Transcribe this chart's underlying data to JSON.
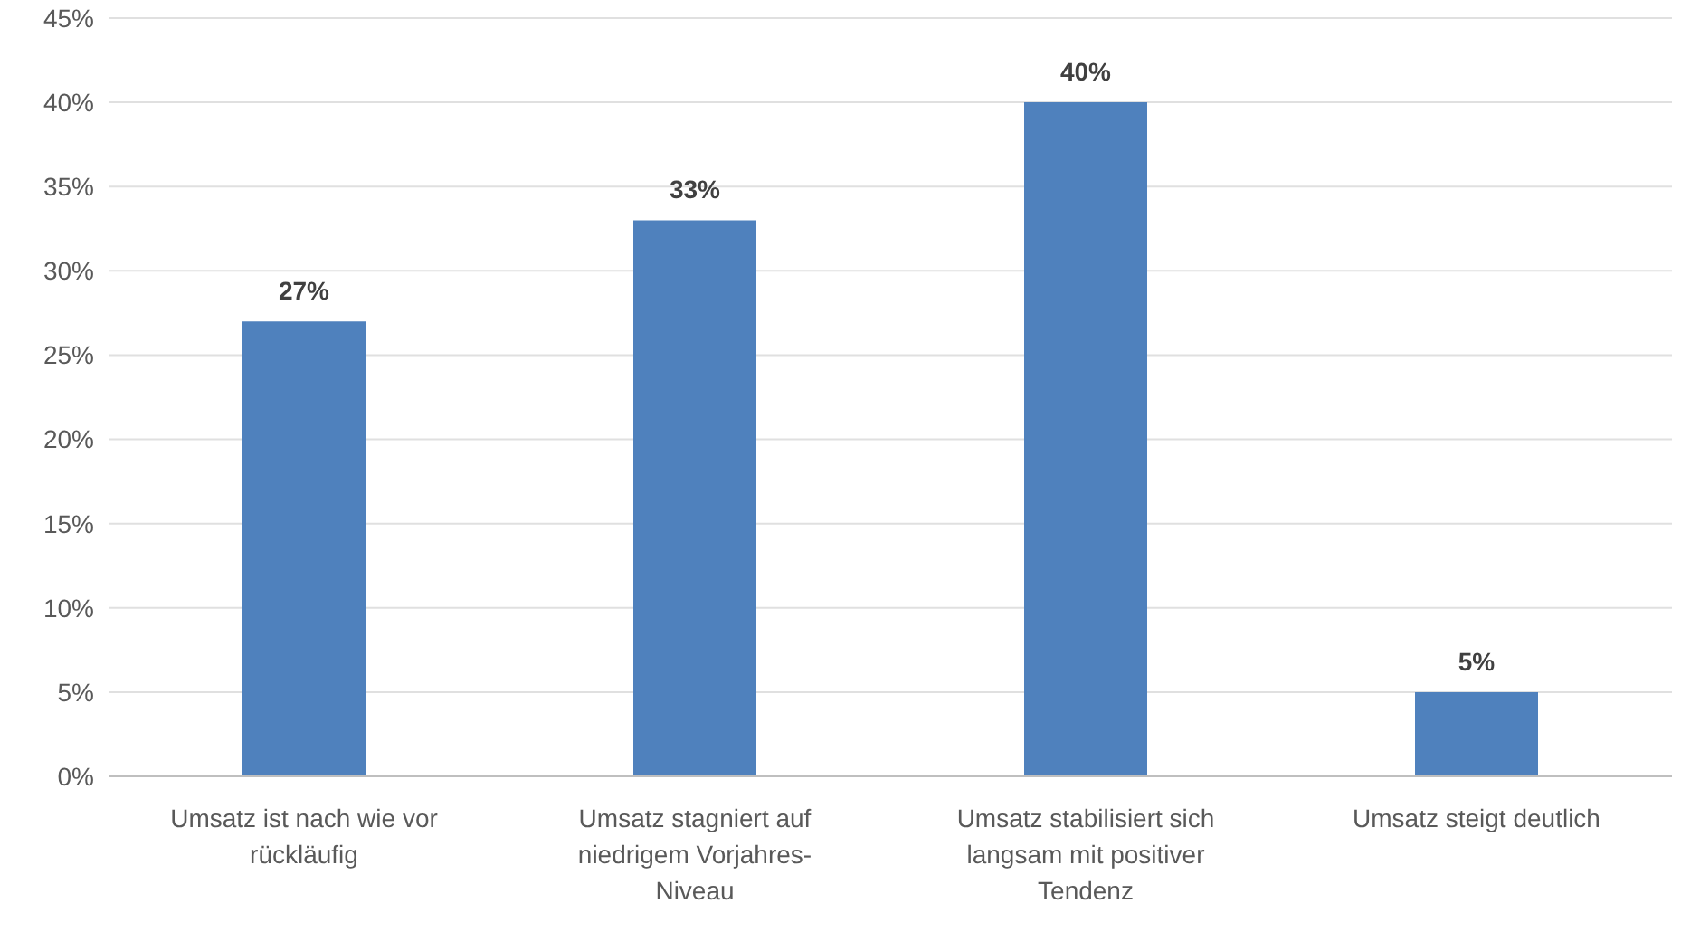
{
  "chart_data": {
    "type": "bar",
    "categories": [
      "Umsatz ist nach wie vor rückläufig",
      "Umsatz stagniert auf niedrigem Vorjahres-Niveau",
      "Umsatz stabilisiert sich langsam mit positiver Tendenz",
      "Umsatz steigt deutlich"
    ],
    "values": [
      27,
      33,
      40,
      5
    ],
    "value_labels": [
      "27%",
      "33%",
      "40%",
      "5%"
    ],
    "color": "#4f81bd",
    "ylim": [
      0,
      45
    ],
    "yticks": [
      {
        "value": 0,
        "label": "0%"
      },
      {
        "value": 5,
        "label": "5%"
      },
      {
        "value": 10,
        "label": "10%"
      },
      {
        "value": 15,
        "label": "15%"
      },
      {
        "value": 20,
        "label": "20%"
      },
      {
        "value": 25,
        "label": "25%"
      },
      {
        "value": 30,
        "label": "30%"
      },
      {
        "value": 35,
        "label": "35%"
      },
      {
        "value": 40,
        "label": "40%"
      },
      {
        "value": 45,
        "label": "45%"
      }
    ],
    "grid": "y",
    "legend": false
  }
}
